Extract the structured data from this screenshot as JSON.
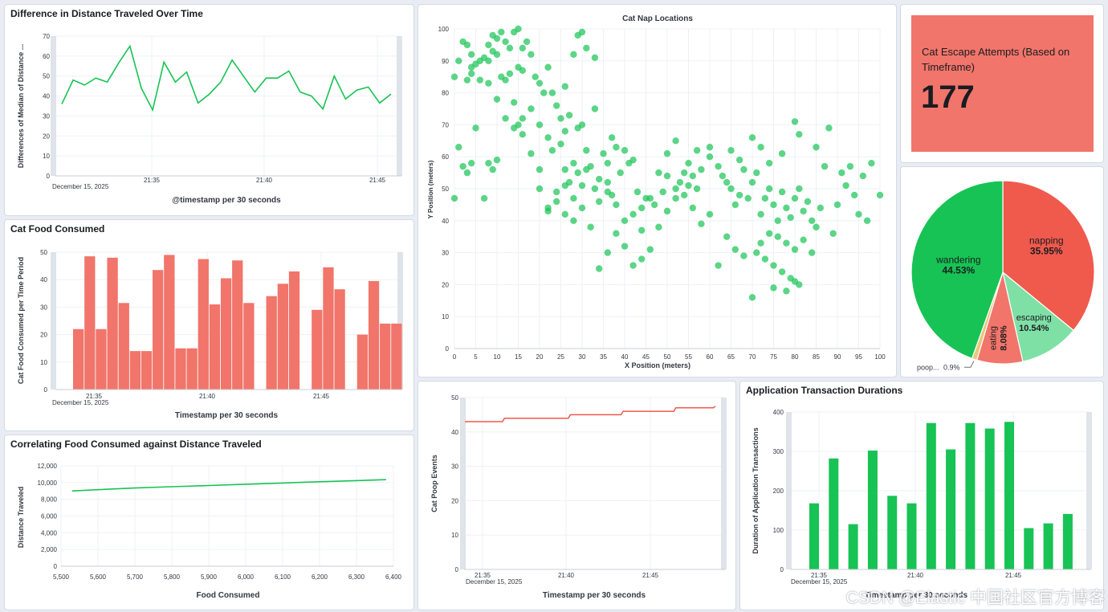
{
  "colors": {
    "green": "#17c354",
    "red": "#ef5a4d",
    "light_red": "#f1756a",
    "light_green": "#7fe0a6",
    "yellow": "#eac77a"
  },
  "distance_chart": {
    "title": "Difference in Distance Traveled Over Time",
    "chart_data": {
      "type": "line",
      "title": "Difference in Distance Traveled Over Time",
      "xlabel": "@timestamp per 30 seconds",
      "ylabel": "Differences of Median of Distance ...",
      "x_ticks": [
        "21:35",
        "21:40",
        "21:45"
      ],
      "x_date": "December 15, 2025",
      "ylim": [
        0,
        70
      ],
      "y_ticks": [
        0,
        10,
        20,
        30,
        40,
        50,
        60,
        70
      ],
      "values": [
        36,
        48,
        45.5,
        49,
        47,
        56.5,
        65,
        44,
        33,
        57,
        47,
        52,
        36.5,
        41,
        47,
        58,
        50,
        42,
        49,
        49,
        52.5,
        42,
        40,
        33.5,
        50,
        38.5,
        43,
        44.5,
        36.5,
        41
      ]
    }
  },
  "food_chart": {
    "title": "Cat Food Consumed",
    "chart_data": {
      "type": "bar",
      "title": "Cat Food Consumed",
      "xlabel": "Timestamp per 30 seconds",
      "ylabel": "Cat Food Consumed per Time Period",
      "x_ticks": [
        "21:35",
        "21:40",
        "21:45"
      ],
      "x_date": "December 15, 2025",
      "ylim": [
        0,
        50
      ],
      "y_ticks": [
        0,
        10,
        20,
        30,
        40,
        50
      ],
      "values": [
        22,
        48.5,
        22,
        48,
        31.5,
        14,
        14,
        43.5,
        49,
        15,
        15,
        47.5,
        31,
        40.5,
        47,
        31.5,
        null,
        34,
        38.5,
        43,
        null,
        29,
        44.5,
        36.5,
        null,
        20,
        39.5,
        24,
        24
      ]
    }
  },
  "correlation_chart": {
    "title": "Correlating Food Consumed against Distance Traveled",
    "chart_data": {
      "type": "line",
      "title": "Correlating Food Consumed against Distance Traveled",
      "xlabel": "Food Consumed",
      "ylabel": "Distance Traveled",
      "xlim": [
        5500,
        6400
      ],
      "ylim": [
        0,
        12000
      ],
      "x_ticks": [
        "5,500",
        "5,600",
        "5,700",
        "5,800",
        "5,900",
        "6,000",
        "6,100",
        "6,200",
        "6,300",
        "6,400"
      ],
      "y_ticks": [
        "0",
        "2,000",
        "4,000",
        "6,000",
        "8,000",
        "10,000",
        "12,000"
      ],
      "x": [
        5530,
        5600,
        5700,
        5800,
        5900,
        6000,
        6100,
        6200,
        6300,
        6380
      ],
      "y": [
        9000,
        9150,
        9350,
        9500,
        9650,
        9800,
        9950,
        10100,
        10230,
        10350
      ]
    }
  },
  "scatter_chart": {
    "title": "Cat Nap Locations",
    "chart_data": {
      "type": "scatter",
      "title": "Cat Nap Locations",
      "xlabel": "X Position (meters)",
      "ylabel": "Y Position (meters)",
      "xlim": [
        0,
        100
      ],
      "ylim": [
        0,
        100
      ],
      "x_ticks": [
        0,
        5,
        10,
        15,
        20,
        25,
        30,
        35,
        40,
        45,
        50,
        55,
        60,
        65,
        70,
        75,
        80,
        85,
        90,
        95,
        100
      ],
      "y_ticks": [
        0,
        10,
        20,
        30,
        40,
        50,
        60,
        70,
        80,
        90,
        100
      ],
      "points": [
        [
          0,
          85
        ],
        [
          1,
          90
        ],
        [
          2,
          96
        ],
        [
          3,
          95
        ],
        [
          4,
          88
        ],
        [
          4,
          92
        ],
        [
          5,
          89
        ],
        [
          6,
          90
        ],
        [
          7,
          91
        ],
        [
          8,
          90
        ],
        [
          8,
          95
        ],
        [
          9,
          93
        ],
        [
          9,
          98
        ],
        [
          10,
          97
        ],
        [
          10,
          92
        ],
        [
          11,
          99
        ],
        [
          12,
          96
        ],
        [
          13,
          94
        ],
        [
          14,
          99
        ],
        [
          15,
          100
        ],
        [
          16,
          94
        ],
        [
          17,
          96
        ],
        [
          18,
          92
        ],
        [
          12,
          84
        ],
        [
          11,
          85
        ],
        [
          13,
          86
        ],
        [
          15,
          88
        ],
        [
          16,
          87
        ],
        [
          19,
          85
        ],
        [
          20,
          83
        ],
        [
          22,
          88
        ],
        [
          21,
          80
        ],
        [
          23,
          80
        ],
        [
          24,
          76
        ],
        [
          26,
          82
        ],
        [
          25,
          72
        ],
        [
          27,
          73
        ],
        [
          28,
          92
        ],
        [
          29,
          98
        ],
        [
          30,
          99
        ],
        [
          31,
          94
        ],
        [
          33,
          91
        ],
        [
          14,
          77
        ],
        [
          16,
          72
        ],
        [
          18,
          75
        ],
        [
          20,
          70
        ],
        [
          22,
          66
        ],
        [
          15,
          70
        ],
        [
          23,
          62
        ],
        [
          25,
          64
        ],
        [
          26,
          68
        ],
        [
          28,
          58
        ],
        [
          29,
          69
        ],
        [
          30,
          70
        ],
        [
          31,
          62
        ],
        [
          33,
          75
        ],
        [
          35,
          61
        ],
        [
          36,
          58
        ],
        [
          37,
          66
        ],
        [
          38,
          63
        ],
        [
          40,
          62
        ],
        [
          42,
          59
        ],
        [
          26,
          56
        ],
        [
          27,
          52
        ],
        [
          29,
          55
        ],
        [
          31,
          56
        ],
        [
          33,
          50
        ],
        [
          34,
          46
        ],
        [
          36,
          52
        ],
        [
          37,
          48
        ],
        [
          39,
          55
        ],
        [
          41,
          58
        ],
        [
          43,
          49
        ],
        [
          44,
          44
        ],
        [
          45,
          47
        ],
        [
          47,
          45
        ],
        [
          49,
          49
        ],
        [
          50,
          43
        ],
        [
          52,
          47
        ],
        [
          53,
          52
        ],
        [
          54,
          55
        ],
        [
          55,
          51
        ],
        [
          56,
          54
        ],
        [
          57,
          50
        ],
        [
          58,
          56
        ],
        [
          60,
          60
        ],
        [
          62,
          57
        ],
        [
          63,
          54
        ],
        [
          64,
          52
        ],
        [
          65,
          50
        ],
        [
          66,
          45
        ],
        [
          67,
          48
        ],
        [
          68,
          56
        ],
        [
          69,
          47
        ],
        [
          70,
          52
        ],
        [
          71,
          55
        ],
        [
          72,
          42
        ],
        [
          73,
          47
        ],
        [
          74,
          50
        ],
        [
          75,
          45
        ],
        [
          76,
          40
        ],
        [
          77,
          49
        ],
        [
          78,
          44
        ],
        [
          79,
          41
        ],
        [
          80,
          47
        ],
        [
          81,
          50
        ],
        [
          82,
          43
        ],
        [
          83,
          46
        ],
        [
          84,
          40
        ],
        [
          85,
          38
        ],
        [
          74,
          36
        ],
        [
          76,
          35
        ],
        [
          78,
          33
        ],
        [
          80,
          31
        ],
        [
          82,
          34
        ],
        [
          84,
          30
        ],
        [
          73,
          28
        ],
        [
          75,
          26
        ],
        [
          77,
          24
        ],
        [
          79,
          22
        ],
        [
          81,
          20
        ],
        [
          72,
          33
        ],
        [
          71,
          30
        ],
        [
          75,
          19
        ],
        [
          78,
          18
        ],
        [
          80,
          21
        ],
        [
          70,
          16
        ],
        [
          68,
          29
        ],
        [
          66,
          31
        ],
        [
          64,
          35
        ],
        [
          62,
          26
        ],
        [
          60,
          42
        ],
        [
          58,
          39
        ],
        [
          56,
          44
        ],
        [
          54,
          48
        ],
        [
          52,
          50
        ],
        [
          50,
          54
        ],
        [
          48,
          38
        ],
        [
          46,
          31
        ],
        [
          44,
          28
        ],
        [
          42,
          26
        ],
        [
          40,
          32
        ],
        [
          38,
          36
        ],
        [
          36,
          30
        ],
        [
          34,
          25
        ],
        [
          32,
          38
        ],
        [
          30,
          44
        ],
        [
          28,
          40
        ],
        [
          26,
          42
        ],
        [
          24,
          46
        ],
        [
          22,
          44
        ],
        [
          20,
          50
        ],
        [
          2,
          57
        ],
        [
          3,
          55
        ],
        [
          4,
          58
        ],
        [
          1,
          63
        ],
        [
          0,
          47
        ],
        [
          5,
          69
        ],
        [
          7,
          47
        ],
        [
          8,
          58
        ],
        [
          9,
          56
        ],
        [
          10,
          59
        ],
        [
          88,
          69
        ],
        [
          90,
          45
        ],
        [
          92,
          51
        ],
        [
          94,
          48
        ],
        [
          95,
          42
        ],
        [
          96,
          54
        ],
        [
          98,
          58
        ],
        [
          100,
          48
        ],
        [
          97,
          40
        ],
        [
          93,
          57
        ],
        [
          89,
          36
        ],
        [
          87,
          57
        ],
        [
          86,
          44
        ],
        [
          91,
          55
        ],
        [
          85,
          63
        ],
        [
          80,
          71
        ],
        [
          81,
          67
        ],
        [
          77,
          61
        ],
        [
          74,
          58
        ],
        [
          72,
          63
        ],
        [
          70,
          66
        ],
        [
          67,
          59
        ],
        [
          65,
          62
        ],
        [
          60,
          63
        ],
        [
          57,
          62
        ],
        [
          55,
          58
        ],
        [
          52,
          65
        ],
        [
          50,
          61
        ],
        [
          48,
          55
        ],
        [
          46,
          47
        ],
        [
          44,
          37
        ],
        [
          42,
          42
        ],
        [
          40,
          40
        ],
        [
          38,
          45
        ],
        [
          36,
          49
        ],
        [
          34,
          53
        ],
        [
          32,
          57
        ],
        [
          30,
          51
        ],
        [
          28,
          47
        ],
        [
          26,
          51
        ],
        [
          24,
          49
        ],
        [
          22,
          43
        ],
        [
          20,
          56
        ],
        [
          18,
          61
        ],
        [
          16,
          67
        ],
        [
          14,
          69
        ],
        [
          12,
          72
        ],
        [
          10,
          78
        ],
        [
          8,
          83
        ],
        [
          6,
          84
        ],
        [
          4,
          86
        ],
        [
          3,
          84
        ]
      ]
    }
  },
  "metric": {
    "label": "Cat Escape Attempts (Based on Timeframe)",
    "value": "177"
  },
  "pie_chart": {
    "chart_data": {
      "type": "pie",
      "slices": [
        {
          "label": "napping",
          "pct_label": "35.95%",
          "value": 35.95
        },
        {
          "label": "escaping",
          "pct_label": "10.54%",
          "value": 10.54
        },
        {
          "label": "eating",
          "pct_label": "8.08%",
          "value": 8.08
        },
        {
          "label": "poop...",
          "pct_label": "0.9%",
          "value": 0.9
        },
        {
          "label": "wandering",
          "pct_label": "44.53%",
          "value": 44.53
        }
      ]
    }
  },
  "poop_chart": {
    "chart_data": {
      "type": "line",
      "xlabel": "Timestamp per 30 seconds",
      "ylabel": "Cat Poop Events",
      "x_ticks": [
        "21:35",
        "21:40",
        "21:45"
      ],
      "x_date": "December 15, 2025",
      "ylim": [
        0,
        50
      ],
      "y_ticks": [
        0,
        10,
        20,
        30,
        40,
        50
      ],
      "values": [
        43,
        43,
        43,
        44,
        44,
        44,
        44,
        44,
        45,
        45,
        45,
        45,
        46,
        46,
        46,
        46,
        47,
        47,
        47,
        47.5
      ]
    }
  },
  "transaction_chart": {
    "title": "Application Transaction Durations",
    "chart_data": {
      "type": "bar",
      "title": "Application Transaction Durations",
      "xlabel": "Timestamp per 30 seconds",
      "ylabel": "Duration of Application Transactions",
      "x_ticks": [
        "21:35",
        "21:40",
        "21:45"
      ],
      "x_date": "December 15, 2025",
      "ylim": [
        0,
        400
      ],
      "y_ticks": [
        0,
        100,
        200,
        300,
        400
      ],
      "values": [
        168,
        282,
        115,
        302,
        187,
        168,
        372,
        305,
        372,
        358,
        375,
        105,
        117,
        141
      ]
    }
  },
  "watermark": "CSDN @Elastic 中国社区官方博客"
}
